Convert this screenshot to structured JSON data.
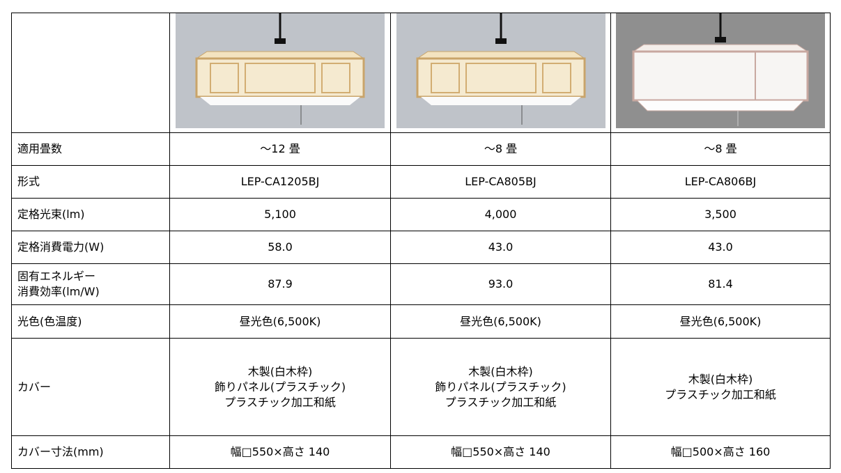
{
  "table": {
    "rows": [
      [
        "適用畳数",
        "～12 畳",
        "～8 畳",
        "～8 畳"
      ],
      [
        "形式",
        "LEP-CA1205BJ",
        "LEP-CA805BJ",
        "LEP-CA806BJ"
      ],
      [
        "定格光束(lm)",
        "5,100",
        "4,000",
        "3,500"
      ],
      [
        "定格消費電力(W)",
        "58.0",
        "43.0",
        "43.0"
      ],
      [
        [
          "固有エネルギー",
          "消費効率(lm/W)"
        ],
        "87.9",
        "93.0",
        "81.4"
      ],
      [
        "光色(色温度)",
        "昼光色(6,500K)",
        "昼光色(6,500K)",
        "昼光色(6,500K)"
      ],
      [
        "カバー",
        [
          "木製(白木枠)",
          "飾りパネル(プラスチック)",
          "プラスチック加工和紙"
        ],
        [
          "木製(白木枠)",
          "飾りパネル(プラスチック)",
          "プラスチック加工和紙"
        ],
        [
          "木製(白木枠)",
          "プラスチック加工和紙"
        ]
      ],
      [
        "カバー寸法(mm)",
        "幅□550×高さ 140",
        "幅□550×高さ 140",
        "幅□500×高さ 160"
      ]
    ]
  }
}
